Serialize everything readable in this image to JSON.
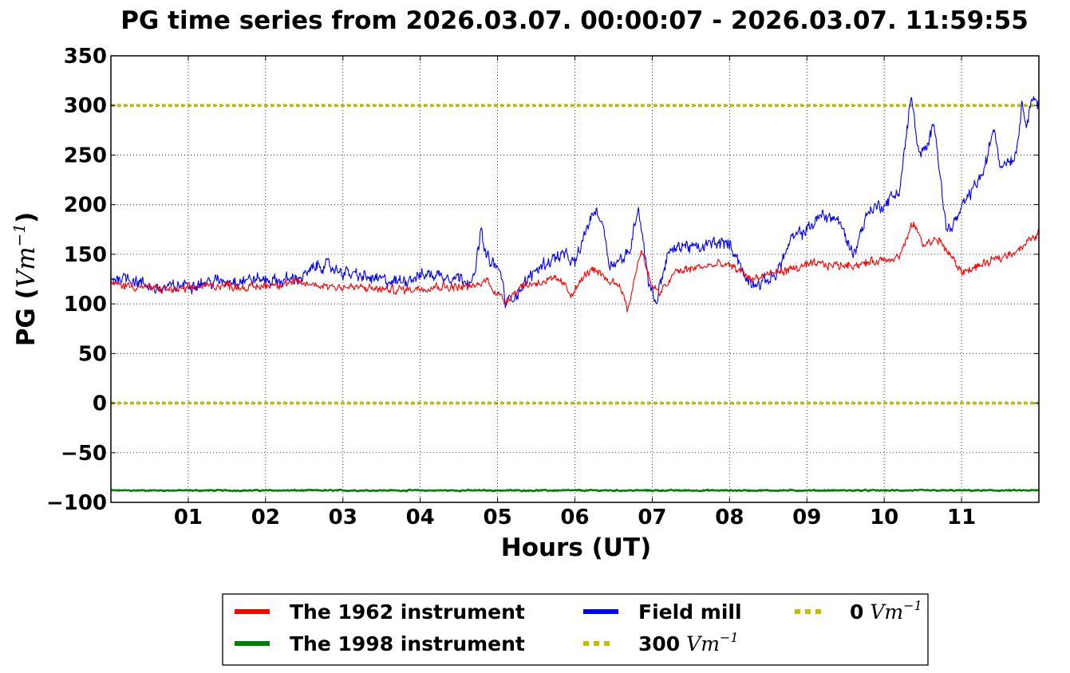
{
  "chart_data": {
    "type": "line",
    "title": "PG time series from 2026.03.07. 00:00:07 - 2026.03.07. 11:59:55",
    "xlabel": "Hours (UT)",
    "ylabel_text": "PG (",
    "ylabel_math": "Vm",
    "ylabel_exp": "−1",
    "ylabel_close": ")",
    "xlim": [
      0,
      12
    ],
    "ylim": [
      -100,
      350
    ],
    "x_ticks": [
      1,
      2,
      3,
      4,
      5,
      6,
      7,
      8,
      9,
      10,
      11
    ],
    "x_tick_labels": [
      "01",
      "02",
      "03",
      "04",
      "05",
      "06",
      "07",
      "08",
      "09",
      "10",
      "11"
    ],
    "y_ticks": [
      -100,
      -50,
      0,
      50,
      100,
      150,
      200,
      250,
      300,
      350
    ],
    "y_tick_labels": [
      "−100",
      "−50",
      "0",
      "50",
      "100",
      "150",
      "200",
      "250",
      "300",
      "350"
    ],
    "grid": true,
    "legend_position": "bottom-center, below plot",
    "series": [
      {
        "name": "The 1962 instrument",
        "color": "#ff0000",
        "noise": 4,
        "x": [
          0,
          0.3,
          0.6,
          0.9,
          1.2,
          1.5,
          1.8,
          2.1,
          2.4,
          2.7,
          3.0,
          3.3,
          3.6,
          3.9,
          4.2,
          4.5,
          4.75,
          4.85,
          5.0,
          5.1,
          5.3,
          5.6,
          5.8,
          5.95,
          6.2,
          6.4,
          6.6,
          6.68,
          6.85,
          7.0,
          7.1,
          7.3,
          7.6,
          7.9,
          8.1,
          8.3,
          8.5,
          8.8,
          9.1,
          9.4,
          9.7,
          10.0,
          10.2,
          10.38,
          10.5,
          10.7,
          10.8,
          11.0,
          11.3,
          11.6,
          11.8,
          12.0
        ],
        "y": [
          120,
          118,
          115,
          114,
          118,
          119,
          116,
          120,
          121,
          119,
          117,
          116,
          114,
          115,
          118,
          117,
          118,
          125,
          110,
          103,
          118,
          123,
          124,
          110,
          135,
          125,
          118,
          92,
          155,
          118,
          110,
          132,
          137,
          140,
          135,
          125,
          130,
          135,
          140,
          139,
          140,
          145,
          148,
          182,
          160,
          165,
          155,
          132,
          140,
          150,
          158,
          172
        ]
      },
      {
        "name": "The 1998 instrument",
        "color": "#008000",
        "noise": 0.6,
        "x": [
          0,
          12
        ],
        "y": [
          -88,
          -88
        ]
      },
      {
        "name": "Field mill",
        "color": "#0000ff",
        "noise": 6,
        "x": [
          0,
          0.2,
          0.4,
          0.6,
          0.8,
          1.0,
          1.3,
          1.6,
          1.9,
          2.2,
          2.5,
          2.7,
          2.9,
          3.1,
          3.4,
          3.7,
          3.9,
          4.1,
          4.4,
          4.7,
          4.78,
          4.85,
          4.95,
          5.05,
          5.1,
          5.3,
          5.5,
          5.7,
          5.85,
          6.0,
          6.15,
          6.25,
          6.35,
          6.45,
          6.6,
          6.7,
          6.82,
          6.95,
          7.05,
          7.1,
          7.2,
          7.4,
          7.6,
          7.8,
          8.0,
          8.1,
          8.2,
          8.4,
          8.6,
          8.8,
          9.0,
          9.2,
          9.4,
          9.6,
          9.8,
          10.0,
          10.2,
          10.35,
          10.45,
          10.55,
          10.65,
          10.8,
          10.9,
          11.1,
          11.3,
          11.42,
          11.5,
          11.6,
          11.7,
          11.78,
          11.85,
          11.92,
          12.0
        ],
        "y": [
          125,
          128,
          120,
          115,
          117,
          120,
          122,
          124,
          125,
          123,
          128,
          140,
          135,
          130,
          125,
          122,
          127,
          130,
          128,
          124,
          175,
          148,
          140,
          130,
          100,
          115,
          135,
          145,
          150,
          140,
          175,
          195,
          185,
          140,
          145,
          150,
          200,
          125,
          100,
          120,
          150,
          160,
          155,
          162,
          160,
          148,
          125,
          120,
          130,
          165,
          175,
          190,
          185,
          150,
          195,
          200,
          215,
          310,
          250,
          255,
          285,
          175,
          180,
          210,
          235,
          280,
          240,
          245,
          250,
          300,
          285,
          310,
          300
        ]
      }
    ],
    "reference_lines": [
      {
        "name": "300",
        "value": 300,
        "color": "#bfbf00"
      },
      {
        "name": "0",
        "value": 0,
        "color": "#bfbf00"
      }
    ]
  },
  "legend": {
    "items": [
      {
        "label": "The 1962 instrument",
        "unit": "",
        "exp": "",
        "color": "#ff0000",
        "dashed": false
      },
      {
        "label": "The 1998 instrument",
        "unit": "",
        "exp": "",
        "color": "#008000",
        "dashed": false
      },
      {
        "label": "Field mill",
        "unit": "",
        "exp": "",
        "color": "#0000ff",
        "dashed": false
      },
      {
        "label": "300",
        "unit": "Vm",
        "exp": "−1",
        "color": "#bfbf00",
        "dashed": true
      },
      {
        "label": "0",
        "unit": "Vm",
        "exp": "−1",
        "color": "#bfbf00",
        "dashed": true
      }
    ]
  }
}
